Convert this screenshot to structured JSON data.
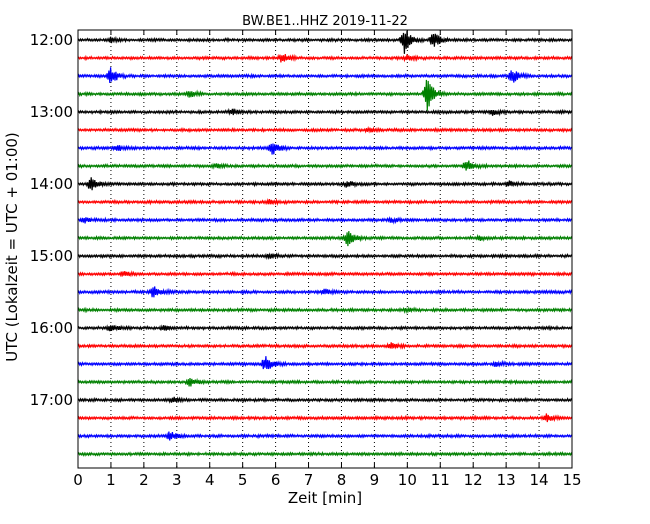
{
  "chart_data": {
    "type": "line",
    "title": "BW.BE1..HHZ 2019-11-22",
    "xlabel": "Zeit  [min]",
    "ylabel": "UTC (Lokalzeit = UTC + 01:00)",
    "xlim": [
      0,
      15
    ],
    "x_ticks": [
      "0",
      "1",
      "2",
      "3",
      "4",
      "5",
      "6",
      "7",
      "8",
      "9",
      "10",
      "11",
      "12",
      "13",
      "14",
      "15"
    ],
    "y_ticks": [
      "12:00",
      "13:00",
      "14:00",
      "15:00",
      "16:00",
      "17:00"
    ],
    "grid": true,
    "trace_colors": [
      "#000000",
      "#ff0000",
      "#0000ff",
      "#008000"
    ],
    "traces": [
      {
        "start": "12:00",
        "events": [
          {
            "t": 9.9,
            "amp": 1.0
          },
          {
            "t": 10.8,
            "amp": 0.6
          },
          {
            "t": 1.0,
            "amp": 0.15
          }
        ]
      },
      {
        "start": "12:15",
        "events": [
          {
            "t": 6.2,
            "amp": 0.35
          },
          {
            "t": 10.0,
            "amp": 0.2
          }
        ]
      },
      {
        "start": "12:30",
        "events": [
          {
            "t": 1.0,
            "amp": 0.6
          },
          {
            "t": 13.2,
            "amp": 0.5
          }
        ]
      },
      {
        "start": "12:45",
        "events": [
          {
            "t": 10.6,
            "amp": 1.3
          },
          {
            "t": 3.4,
            "amp": 0.25
          }
        ]
      },
      {
        "start": "13:00",
        "events": [
          {
            "t": 4.7,
            "amp": 0.2
          },
          {
            "t": 12.6,
            "amp": 0.25
          }
        ]
      },
      {
        "start": "13:15",
        "events": [
          {
            "t": 8.8,
            "amp": 0.15
          }
        ]
      },
      {
        "start": "13:30",
        "events": [
          {
            "t": 5.9,
            "amp": 0.55
          },
          {
            "t": 1.2,
            "amp": 0.2
          }
        ]
      },
      {
        "start": "13:45",
        "events": [
          {
            "t": 11.8,
            "amp": 0.45
          },
          {
            "t": 4.2,
            "amp": 0.15
          }
        ]
      },
      {
        "start": "14:00",
        "events": [
          {
            "t": 0.4,
            "amp": 0.5
          },
          {
            "t": 8.2,
            "amp": 0.25
          },
          {
            "t": 13.1,
            "amp": 0.2
          }
        ]
      },
      {
        "start": "14:15",
        "events": [
          {
            "t": 5.8,
            "amp": 0.15
          }
        ]
      },
      {
        "start": "14:30",
        "events": [
          {
            "t": 0.2,
            "amp": 0.2
          },
          {
            "t": 9.5,
            "amp": 0.15
          }
        ]
      },
      {
        "start": "14:45",
        "events": [
          {
            "t": 8.2,
            "amp": 0.55
          },
          {
            "t": 12.2,
            "amp": 0.15
          }
        ]
      },
      {
        "start": "15:00",
        "events": [
          {
            "t": 5.8,
            "amp": 0.15
          }
        ]
      },
      {
        "start": "15:15",
        "events": [
          {
            "t": 1.4,
            "amp": 0.2
          }
        ]
      },
      {
        "start": "15:30",
        "events": [
          {
            "t": 2.3,
            "amp": 0.45
          },
          {
            "t": 7.5,
            "amp": 0.2
          }
        ]
      },
      {
        "start": "15:45",
        "events": [
          {
            "t": 10.0,
            "amp": 0.1
          }
        ]
      },
      {
        "start": "16:00",
        "events": [
          {
            "t": 1.0,
            "amp": 0.3
          },
          {
            "t": 2.6,
            "amp": 0.15
          }
        ]
      },
      {
        "start": "16:15",
        "events": [
          {
            "t": 9.5,
            "amp": 0.2
          }
        ]
      },
      {
        "start": "16:30",
        "events": [
          {
            "t": 5.7,
            "amp": 0.65
          },
          {
            "t": 12.7,
            "amp": 0.2
          }
        ]
      },
      {
        "start": "16:45",
        "events": [
          {
            "t": 3.4,
            "amp": 0.3
          }
        ]
      },
      {
        "start": "17:00",
        "events": [
          {
            "t": 2.9,
            "amp": 0.2
          }
        ]
      },
      {
        "start": "17:15",
        "events": [
          {
            "t": 14.2,
            "amp": 0.3
          }
        ]
      },
      {
        "start": "17:30",
        "events": [
          {
            "t": 2.8,
            "amp": 0.35
          }
        ]
      },
      {
        "start": "17:45",
        "events": []
      }
    ]
  }
}
